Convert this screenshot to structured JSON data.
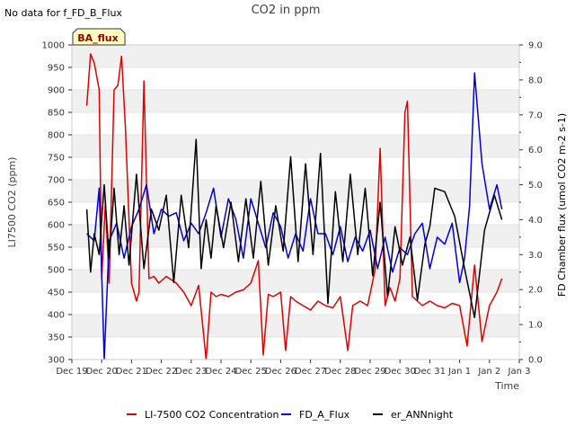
{
  "header": {
    "nodata_note": "No data for f_FD_B_Flux",
    "badge": "BA_flux"
  },
  "chart_data": {
    "type": "line",
    "title": "CO2 in ppm",
    "xlabel": "Time",
    "ylabel_left": "LI7500 CO2 (ppm)",
    "ylabel_right": "FD Chamber flux (umol CO2 m-2 s-1)",
    "x_range": [
      "2023-12-19",
      "2024-01-03"
    ],
    "x_ticks": [
      "Dec 19",
      "Dec 20",
      "Dec 21",
      "Dec 22",
      "Dec 23",
      "Dec 24",
      "Dec 25",
      "Dec 26",
      "Dec 27",
      "Dec 28",
      "Dec 29",
      "Dec 30",
      "Dec 31",
      "Jan 1",
      "Jan 2",
      "Jan 3"
    ],
    "y_left_range": [
      300,
      1000
    ],
    "y_left_ticks": [
      300,
      350,
      400,
      450,
      500,
      550,
      600,
      650,
      700,
      750,
      800,
      850,
      900,
      950,
      1000
    ],
    "y_right_range": [
      0.0,
      9.0
    ],
    "y_right_ticks": [
      "0.0",
      "1.0",
      "2.0",
      "3.0",
      "4.0",
      "5.0",
      "6.0",
      "7.0",
      "8.0",
      "9.0"
    ],
    "grid": "horizontal bands",
    "legend_position": "bottom",
    "series": [
      {
        "name": "LI-7500 CO2 Concentration",
        "axis": "left",
        "color": "#e00000",
        "x": [
          "2023-12-19 12:00",
          "2023-12-19 15:00",
          "2023-12-19 18:00",
          "2023-12-19 22:00",
          "2023-12-20 00:00",
          "2023-12-20 03:00",
          "2023-12-20 06:00",
          "2023-12-20 10:00",
          "2023-12-20 13:00",
          "2023-12-20 16:00",
          "2023-12-20 19:00",
          "2023-12-21 00:00",
          "2023-12-21 04:00",
          "2023-12-21 06:00",
          "2023-12-21 10:00",
          "2023-12-21 14:00",
          "2023-12-21 18:00",
          "2023-12-21 22:00",
          "2023-12-22 04:00",
          "2023-12-22 12:00",
          "2023-12-22 18:00",
          "2023-12-23 00:00",
          "2023-12-23 06:00",
          "2023-12-23 12:00",
          "2023-12-23 16:00",
          "2023-12-23 20:00",
          "2023-12-24 00:00",
          "2023-12-24 06:00",
          "2023-12-24 12:00",
          "2023-12-24 18:00",
          "2023-12-25 00:00",
          "2023-12-25 06:00",
          "2023-12-25 10:00",
          "2023-12-25 14:00",
          "2023-12-25 18:00",
          "2023-12-26 00:00",
          "2023-12-26 04:00",
          "2023-12-26 08:00",
          "2023-12-26 12:00",
          "2023-12-26 18:00",
          "2023-12-27 00:00",
          "2023-12-27 06:00",
          "2023-12-27 12:00",
          "2023-12-27 18:00",
          "2023-12-28 00:00",
          "2023-12-28 06:00",
          "2023-12-28 10:00",
          "2023-12-28 16:00",
          "2023-12-28 22:00",
          "2023-12-29 04:00",
          "2023-12-29 08:00",
          "2023-12-29 12:00",
          "2023-12-29 16:00",
          "2023-12-29 20:00",
          "2023-12-30 00:00",
          "2023-12-30 04:00",
          "2023-12-30 06:00",
          "2023-12-30 10:00",
          "2023-12-30 14:00",
          "2023-12-30 18:00",
          "2023-12-31 00:00",
          "2023-12-31 06:00",
          "2023-12-31 12:00",
          "2023-12-31 18:00",
          "2024-01-01 00:00",
          "2024-01-01 06:00",
          "2024-01-01 12:00",
          "2024-01-01 18:00",
          "2024-01-02 00:00",
          "2024-01-02 06:00",
          "2024-01-02 10:00"
        ],
        "values": [
          865,
          980,
          960,
          900,
          480,
          650,
          470,
          900,
          910,
          975,
          820,
          470,
          430,
          450,
          920,
          480,
          485,
          470,
          485,
          470,
          450,
          420,
          465,
          300,
          450,
          440,
          445,
          440,
          450,
          455,
          470,
          520,
          310,
          445,
          440,
          450,
          320,
          440,
          430,
          420,
          410,
          430,
          420,
          415,
          440,
          320,
          420,
          430,
          420,
          500,
          770,
          420,
          460,
          430,
          480,
          850,
          875,
          440,
          430,
          420,
          430,
          420,
          415,
          425,
          420,
          330,
          510,
          340,
          420,
          450,
          480
        ]
      },
      {
        "name": "FD_A_Flux",
        "axis": "right",
        "color": "#0000dd",
        "x": [
          "2023-12-19 12:00",
          "2023-12-19 18:00",
          "2023-12-19 22:00",
          "2023-12-20 02:00",
          "2023-12-20 06:00",
          "2023-12-20 12:00",
          "2023-12-20 18:00",
          "2023-12-21 00:00",
          "2023-12-21 06:00",
          "2023-12-21 12:00",
          "2023-12-21 18:00",
          "2023-12-22 00:00",
          "2023-12-22 06:00",
          "2023-12-22 12:00",
          "2023-12-22 18:00",
          "2023-12-23 00:00",
          "2023-12-23 06:00",
          "2023-12-23 12:00",
          "2023-12-23 18:00",
          "2023-12-24 00:00",
          "2023-12-24 06:00",
          "2023-12-24 12:00",
          "2023-12-24 18:00",
          "2023-12-25 00:00",
          "2023-12-25 06:00",
          "2023-12-25 12:00",
          "2023-12-25 18:00",
          "2023-12-26 00:00",
          "2023-12-26 06:00",
          "2023-12-26 12:00",
          "2023-12-26 18:00",
          "2023-12-27 00:00",
          "2023-12-27 06:00",
          "2023-12-27 12:00",
          "2023-12-27 18:00",
          "2023-12-28 00:00",
          "2023-12-28 06:00",
          "2023-12-28 12:00",
          "2023-12-28 18:00",
          "2023-12-29 00:00",
          "2023-12-29 06:00",
          "2023-12-29 12:00",
          "2023-12-29 18:00",
          "2023-12-30 00:00",
          "2023-12-30 06:00",
          "2023-12-30 12:00",
          "2023-12-30 18:00",
          "2023-12-31 00:00",
          "2023-12-31 06:00",
          "2023-12-31 12:00",
          "2023-12-31 18:00",
          "2024-01-01 00:00",
          "2024-01-01 04:00",
          "2024-01-01 08:00",
          "2024-01-01 12:00",
          "2024-01-01 18:00",
          "2024-01-02 00:00",
          "2024-01-02 06:00",
          "2024-01-02 10:00"
        ],
        "values": [
          3.6,
          3.4,
          4.9,
          0.0,
          3.4,
          3.9,
          2.9,
          3.8,
          4.3,
          5.0,
          3.6,
          4.3,
          4.1,
          4.2,
          3.4,
          3.9,
          3.6,
          4.2,
          4.9,
          3.5,
          4.6,
          4.0,
          2.9,
          4.6,
          3.9,
          3.2,
          4.2,
          3.8,
          2.9,
          3.6,
          3.1,
          4.6,
          3.6,
          3.6,
          3.0,
          3.8,
          2.8,
          3.5,
          3.1,
          3.7,
          2.6,
          3.5,
          2.5,
          3.2,
          3.0,
          3.6,
          3.9,
          2.6,
          3.5,
          3.3,
          3.9,
          2.2,
          2.9,
          4.4,
          8.2,
          5.6,
          4.3,
          5.0,
          4.3
        ]
      },
      {
        "name": "er_ANNnight",
        "axis": "right",
        "color": "#000000",
        "x": [
          "2023-12-19 12:00",
          "2023-12-19 15:00",
          "2023-12-19 18:00",
          "2023-12-19 22:00",
          "2023-12-20 02:00",
          "2023-12-20 06:00",
          "2023-12-20 10:00",
          "2023-12-20 14:00",
          "2023-12-20 18:00",
          "2023-12-20 22:00",
          "2023-12-21 04:00",
          "2023-12-21 10:00",
          "2023-12-21 16:00",
          "2023-12-21 22:00",
          "2023-12-22 04:00",
          "2023-12-22 10:00",
          "2023-12-22 16:00",
          "2023-12-22 22:00",
          "2023-12-23 04:00",
          "2023-12-23 08:00",
          "2023-12-23 12:00",
          "2023-12-23 16:00",
          "2023-12-23 20:00",
          "2023-12-24 02:00",
          "2023-12-24 08:00",
          "2023-12-24 14:00",
          "2023-12-24 20:00",
          "2023-12-25 02:00",
          "2023-12-25 08:00",
          "2023-12-25 14:00",
          "2023-12-25 20:00",
          "2023-12-26 02:00",
          "2023-12-26 08:00",
          "2023-12-26 14:00",
          "2023-12-26 20:00",
          "2023-12-27 02:00",
          "2023-12-27 08:00",
          "2023-12-27 14:00",
          "2023-12-27 20:00",
          "2023-12-28 02:00",
          "2023-12-28 08:00",
          "2023-12-28 14:00",
          "2023-12-28 20:00",
          "2023-12-29 02:00",
          "2023-12-29 08:00",
          "2023-12-29 14:00",
          "2023-12-29 20:00",
          "2023-12-30 02:00",
          "2023-12-30 08:00",
          "2023-12-30 14:00",
          "2023-12-30 20:00",
          "2023-12-31 00:00",
          "2023-12-31 04:00",
          "2023-12-31 12:00",
          "2023-12-31 20:00",
          "2024-01-01 04:00",
          "2024-01-01 12:00",
          "2024-01-01 20:00",
          "2024-01-02 04:00",
          "2024-01-02 10:00"
        ],
        "values": [
          4.3,
          2.5,
          3.6,
          3.0,
          5.0,
          2.9,
          4.9,
          3.0,
          4.4,
          2.7,
          5.3,
          2.6,
          4.3,
          3.7,
          4.7,
          2.2,
          4.7,
          3.2,
          6.3,
          2.6,
          4.0,
          2.9,
          4.4,
          3.2,
          4.5,
          2.8,
          4.6,
          2.9,
          5.1,
          2.7,
          4.4,
          3.1,
          5.8,
          2.8,
          5.6,
          3.0,
          5.9,
          1.6,
          4.8,
          2.8,
          5.3,
          3.0,
          4.9,
          2.4,
          4.5,
          1.8,
          3.8,
          2.7,
          3.5,
          1.7,
          3.3,
          3.8,
          4.9,
          4.8,
          4.1,
          2.6,
          1.2,
          3.7,
          4.7,
          4.0
        ]
      }
    ]
  }
}
